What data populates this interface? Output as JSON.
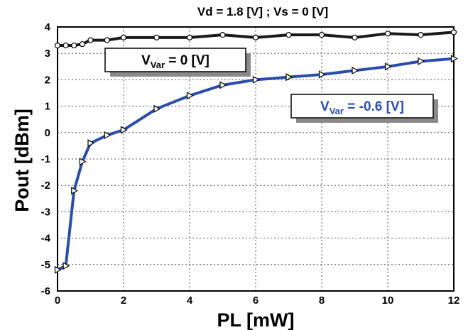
{
  "chart_data": {
    "type": "line",
    "title": "Vd = 1.8 [V]   ;   Vs = 0 [V]",
    "xlabel": "PL [mW]",
    "ylabel": "Pout [dBm]",
    "xlim": [
      0,
      12
    ],
    "ylim": [
      -6,
      4
    ],
    "xticks": [
      0,
      2,
      4,
      6,
      8,
      10,
      12
    ],
    "yticks": [
      -6,
      -5,
      -4,
      -3,
      -2,
      -1,
      0,
      1,
      2,
      3,
      4
    ],
    "grid": true,
    "series": [
      {
        "name": "V_Var = 0 [V]",
        "label_main": "V",
        "label_sub": "Var",
        "label_rest": " = 0 [V]",
        "color": "#1a1a1a",
        "marker": "circle",
        "x": [
          0,
          0.25,
          0.5,
          0.75,
          1,
          1.5,
          2,
          3,
          4,
          5,
          6,
          7,
          8,
          9,
          10,
          11,
          12
        ],
        "y": [
          3.3,
          3.3,
          3.3,
          3.35,
          3.5,
          3.5,
          3.6,
          3.6,
          3.6,
          3.7,
          3.6,
          3.7,
          3.7,
          3.6,
          3.75,
          3.7,
          3.8
        ]
      },
      {
        "name": "V_Var = -0.6 [V]",
        "label_main": "V",
        "label_sub": "Var",
        "label_rest": " = -0.6 [V]",
        "color": "#2a4ea8",
        "marker": "triangle-right",
        "x": [
          0,
          0.25,
          0.5,
          0.75,
          1,
          1.5,
          2,
          3,
          4,
          5,
          6,
          7,
          8,
          9,
          10,
          11,
          12
        ],
        "y": [
          -5.2,
          -5.05,
          -2.2,
          -1.1,
          -0.4,
          -0.1,
          0.1,
          0.9,
          1.4,
          1.8,
          2.0,
          2.1,
          2.2,
          2.35,
          2.5,
          2.7,
          2.8
        ]
      }
    ]
  }
}
